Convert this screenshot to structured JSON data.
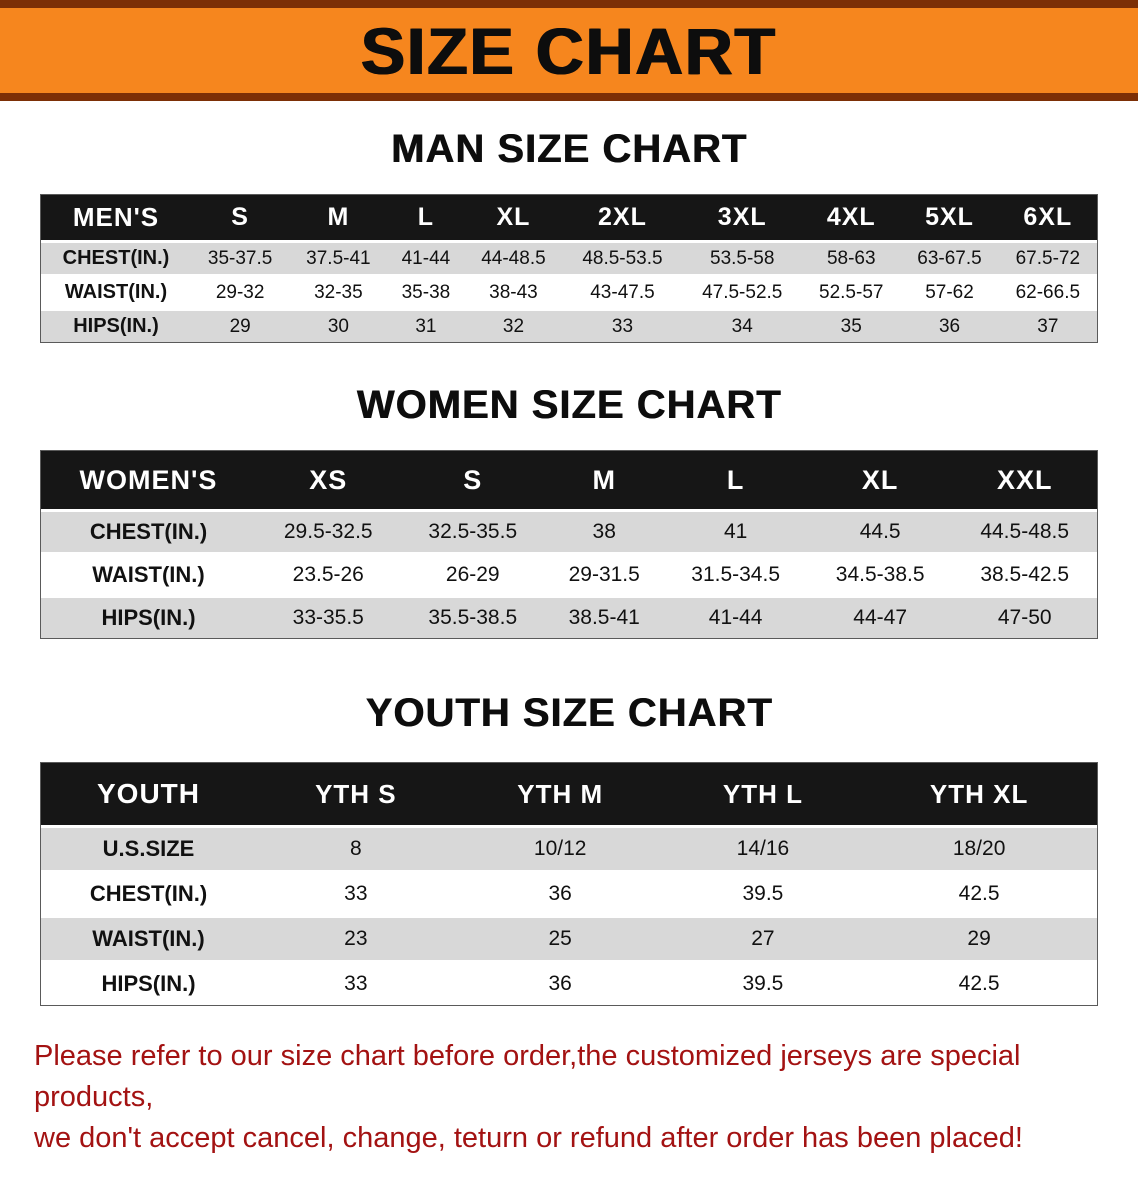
{
  "banner": {
    "title": "SIZE CHART"
  },
  "colors": {
    "banner_bg": "#f6861e",
    "banner_border": "#7c2f06",
    "table_header_bg": "#161616",
    "row_alt_bg": "#d8d8d8",
    "disclaimer_text": "#a31212"
  },
  "sections": {
    "men": {
      "heading": "MAN SIZE CHART",
      "table": {
        "header": [
          "MEN'S",
          "S",
          "M",
          "L",
          "XL",
          "2XL",
          "3XL",
          "4XL",
          "5XL",
          "6XL"
        ],
        "rows": [
          [
            "CHEST(IN.)",
            "35-37.5",
            "37.5-41",
            "41-44",
            "44-48.5",
            "48.5-53.5",
            "53.5-58",
            "58-63",
            "63-67.5",
            "67.5-72"
          ],
          [
            "WAIST(IN.)",
            "29-32",
            "32-35",
            "35-38",
            "38-43",
            "43-47.5",
            "47.5-52.5",
            "52.5-57",
            "57-62",
            "62-66.5"
          ],
          [
            "HIPS(IN.)",
            "29",
            "30",
            "31",
            "32",
            "33",
            "34",
            "35",
            "36",
            "37"
          ]
        ]
      }
    },
    "women": {
      "heading": "WOMEN SIZE CHART",
      "table": {
        "header": [
          "WOMEN'S",
          "XS",
          "S",
          "M",
          "L",
          "XL",
          "XXL"
        ],
        "rows": [
          [
            "CHEST(IN.)",
            "29.5-32.5",
            "32.5-35.5",
            "38",
            "41",
            "44.5",
            "44.5-48.5"
          ],
          [
            "WAIST(IN.)",
            "23.5-26",
            "26-29",
            "29-31.5",
            "31.5-34.5",
            "34.5-38.5",
            "38.5-42.5"
          ],
          [
            "HIPS(IN.)",
            "33-35.5",
            "35.5-38.5",
            "38.5-41",
            "41-44",
            "44-47",
            "47-50"
          ]
        ]
      }
    },
    "youth": {
      "heading": "YOUTH SIZE CHART",
      "table": {
        "header": [
          "YOUTH",
          "YTH S",
          "YTH M",
          "YTH L",
          "YTH XL"
        ],
        "rows": [
          [
            "U.S.SIZE",
            "8",
            "10/12",
            "14/16",
            "18/20"
          ],
          [
            "CHEST(IN.)",
            "33",
            "36",
            "39.5",
            "42.5"
          ],
          [
            "WAIST(IN.)",
            "23",
            "25",
            "27",
            "29"
          ],
          [
            "HIPS(IN.)",
            "33",
            "36",
            "39.5",
            "42.5"
          ]
        ]
      }
    }
  },
  "disclaimer": {
    "line1": "Please refer to our size chart before order,the customized jerseys are special products,",
    "line2": "we don't accept cancel, change, teturn or refund after order has been placed!"
  }
}
